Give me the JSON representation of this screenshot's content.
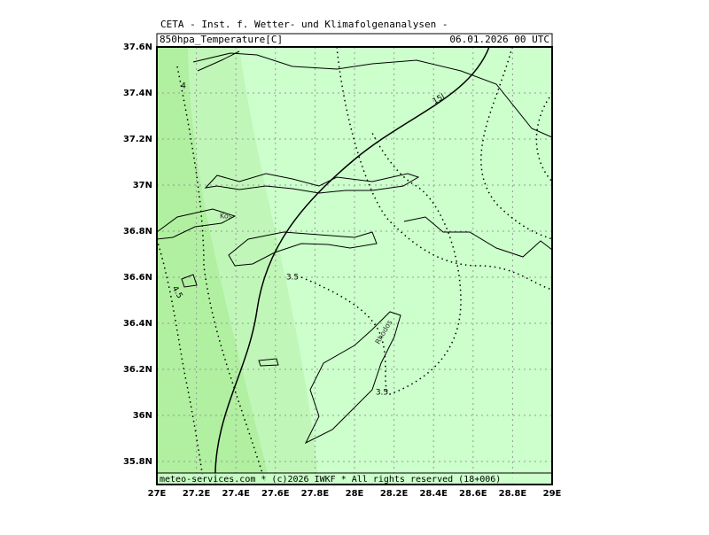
{
  "header": "CETA - Inst. f. Wetter- und Klimafolgenanalysen -",
  "title": "850hpa_Temperature[C]",
  "date": "06.01.2026  00 UTC",
  "footer": "meteo-services.com * (c)2026 IWKF * All rights reserved (18+006)",
  "x_axis": {
    "ticks": [
      "27E",
      "27.2E",
      "27.4E",
      "27.6E",
      "27.8E",
      "28E",
      "28.2E",
      "28.4E",
      "28.6E",
      "28.8E",
      "29E"
    ]
  },
  "y_axis": {
    "ticks": [
      "37.6N",
      "37.4N",
      "37.2N",
      "37N",
      "36.8N",
      "36.6N",
      "36.4N",
      "36.2N",
      "36N",
      "35.8N"
    ]
  },
  "contour_labels": [
    "4",
    "4.5",
    "3.5",
    "3.5",
    "15l"
  ],
  "places": [
    "Kos",
    "Rhodos"
  ]
}
